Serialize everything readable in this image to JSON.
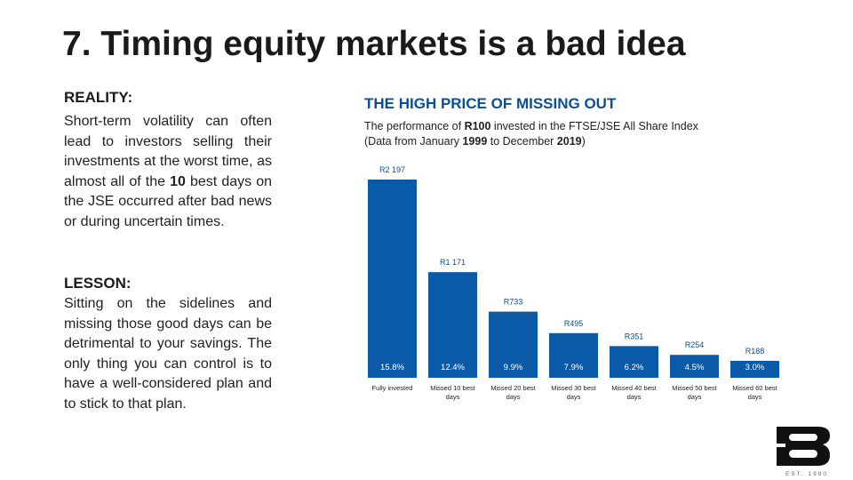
{
  "slide": {
    "title": "7. Timing equity markets is a bad idea",
    "reality_heading": "REALITY:",
    "reality_text": [
      "Short-term volatility can often lead to investors selling their investments at the worst time, as almost all of the ",
      "10",
      " best days on the JSE occurred after bad news or during uncertain times."
    ],
    "lesson_heading": "LESSON:",
    "lesson_text": "Sitting on the sidelines and missing those good days can be detrimental to your savings. The only thing you can control is to have a well-considered plan and to stick to that plan.",
    "logo_text": "EST. 1980"
  },
  "chart_data": {
    "type": "bar",
    "title": "THE HIGH PRICE OF MISSING OUT",
    "subtitle": [
      "The performance of ",
      "R100",
      " invested in the FTSE/JSE All Share Index",
      "(Data from January ",
      "1999",
      " to December ",
      "2019",
      ")"
    ],
    "categories": [
      "Fully invested",
      "Missed 10 best days",
      "Missed 20 best days",
      "Missed 30 best days",
      "Missed 40 best days",
      "Missed 50 best days",
      "Missed 60 best days"
    ],
    "values": [
      2197,
      1171,
      733,
      495,
      351,
      254,
      188
    ],
    "value_labels": [
      "R2 197",
      "R1 171",
      "R733",
      "R495",
      "R351",
      "R254",
      "R188"
    ],
    "return_labels": [
      "15.8%",
      "12.4%",
      "9.9%",
      "7.9%",
      "6.2%",
      "4.5%",
      "3.0%"
    ],
    "color": "#0a5aa8"
  }
}
